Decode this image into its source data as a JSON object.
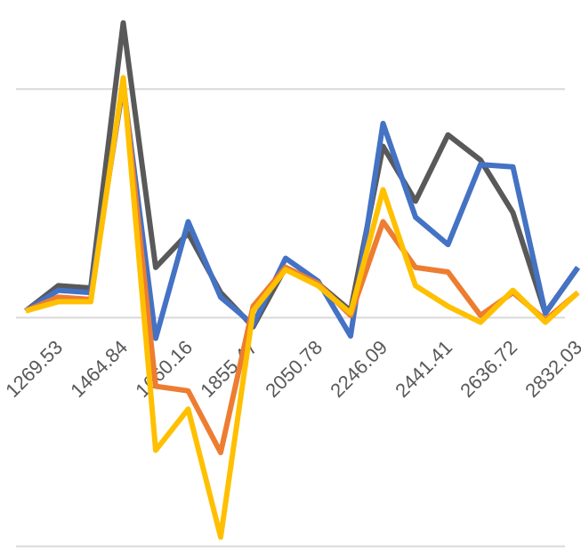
{
  "chart_data": {
    "type": "line",
    "categories": [
      null,
      "1269.53",
      null,
      "1464.84",
      null,
      "1660.16",
      null,
      "1855.47",
      null,
      "2050.78",
      null,
      "2246.09",
      null,
      "2441.41",
      null,
      "2636.72",
      null,
      "2832.03"
    ],
    "series": [
      {
        "color": "#595959",
        "values": [
          0.03,
          0.14,
          0.13,
          1.29,
          0.22,
          0.37,
          0.11,
          -0.04,
          0.22,
          0.15,
          0.03,
          0.75,
          0.51,
          0.8,
          0.69,
          0.46,
          0.02,
          0.22
        ]
      },
      {
        "color": "#4472c4",
        "values": [
          0.03,
          0.12,
          0.11,
          1.02,
          -0.09,
          0.42,
          0.09,
          -0.03,
          0.26,
          0.16,
          -0.08,
          0.85,
          0.44,
          0.32,
          0.67,
          0.66,
          0.02,
          0.22
        ]
      },
      {
        "color": "#ed7d31",
        "values": [
          0.03,
          0.09,
          0.08,
          1.04,
          -0.3,
          -0.32,
          -0.59,
          0.05,
          0.22,
          0.15,
          0.01,
          0.42,
          0.22,
          0.2,
          0.01,
          0.11,
          -0.01,
          0.11
        ]
      },
      {
        "color": "#ffc000",
        "values": [
          0.03,
          0.07,
          0.07,
          1.05,
          -0.58,
          -0.4,
          -0.96,
          0.03,
          0.21,
          0.14,
          0.02,
          0.56,
          0.14,
          0.05,
          -0.02,
          0.12,
          -0.02,
          0.11
        ]
      }
    ],
    "ylim": [
      -1.06,
      1.39
    ],
    "yticks": [
      -1,
      0,
      1
    ],
    "grid": true
  }
}
